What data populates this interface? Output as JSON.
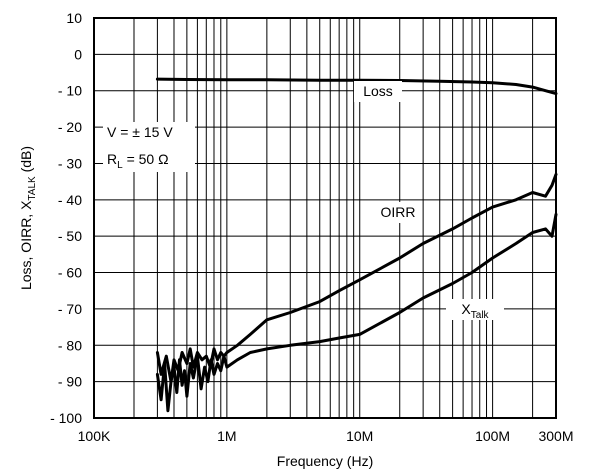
{
  "chart_data": {
    "type": "line",
    "title": "",
    "xlabel": "Frequency (Hz)",
    "ylabel_parts": [
      "Loss, OIRR, X",
      "TALK",
      " (dB)"
    ],
    "x_scale": "log",
    "xlim": [
      100000,
      300000000
    ],
    "ylim": [
      -100,
      10
    ],
    "grid": true,
    "x_ticks": [
      {
        "value": 100000,
        "label": "100K"
      },
      {
        "value": 1000000,
        "label": "1M"
      },
      {
        "value": 10000000,
        "label": "10M"
      },
      {
        "value": 100000000,
        "label": "100M"
      },
      {
        "value": 300000000,
        "label": "300M"
      }
    ],
    "y_ticks": [
      {
        "value": 10,
        "label": "10"
      },
      {
        "value": 0,
        "label": "0"
      },
      {
        "value": -10,
        "label": "- 10"
      },
      {
        "value": -20,
        "label": "- 20"
      },
      {
        "value": -30,
        "label": "- 30"
      },
      {
        "value": -40,
        "label": "- 40"
      },
      {
        "value": -50,
        "label": "- 50"
      },
      {
        "value": -60,
        "label": "- 60"
      },
      {
        "value": -70,
        "label": "- 70"
      },
      {
        "value": -80,
        "label": "- 80"
      },
      {
        "value": -90,
        "label": "- 90"
      },
      {
        "value": -100,
        "label": "- 100"
      }
    ],
    "annotation": {
      "line1": "V = ± 15 V",
      "line2_main": "R",
      "line2_sub": "L",
      "line2_rest": " = 50 Ω"
    },
    "series": [
      {
        "name": "Loss",
        "label_main": "Loss",
        "label_sub": "",
        "x": [
          300000,
          500000,
          1000000,
          2000000,
          5000000,
          10000000,
          20000000,
          40000000,
          70000000,
          100000000,
          150000000,
          200000000,
          250000000,
          300000000
        ],
        "y": [
          -6.8,
          -6.9,
          -7.0,
          -7.0,
          -7.1,
          -7.1,
          -7.2,
          -7.4,
          -7.6,
          -7.8,
          -8.3,
          -9.0,
          -10.0,
          -10.8
        ]
      },
      {
        "name": "OIRR",
        "label_main": "OIRR",
        "label_sub": "",
        "x": [
          300000,
          320000,
          350000,
          380000,
          400000,
          430000,
          460000,
          500000,
          530000,
          560000,
          600000,
          650000,
          700000,
          750000,
          800000,
          850000,
          900000,
          950000,
          1000000,
          1200000,
          1500000,
          2000000,
          3000000,
          5000000,
          7000000,
          10000000,
          20000000,
          30000000,
          50000000,
          70000000,
          100000000,
          150000000,
          200000000,
          250000000,
          280000000,
          300000000
        ],
        "y": [
          -82,
          -88,
          -83,
          -90,
          -84,
          -87,
          -82,
          -85,
          -81,
          -86,
          -82,
          -84,
          -83,
          -86,
          -81,
          -84,
          -82,
          -83,
          -82,
          -80,
          -77,
          -73,
          -71,
          -68,
          -65,
          -62,
          -56,
          -52,
          -48,
          -45,
          -42,
          -40,
          -38,
          -39,
          -36,
          -33
        ]
      },
      {
        "name": "XTalk",
        "label_main": "X",
        "label_sub": "Talk",
        "x": [
          300000,
          320000,
          340000,
          360000,
          380000,
          400000,
          420000,
          440000,
          460000,
          480000,
          500000,
          530000,
          560000,
          600000,
          640000,
          680000,
          720000,
          760000,
          800000,
          850000,
          900000,
          950000,
          1000000,
          1200000,
          1500000,
          2000000,
          3000000,
          5000000,
          7000000,
          10000000,
          20000000,
          30000000,
          50000000,
          70000000,
          100000000,
          150000000,
          200000000,
          250000000,
          280000000,
          300000000
        ],
        "y": [
          -88,
          -95,
          -85,
          -98,
          -90,
          -86,
          -93,
          -84,
          -91,
          -87,
          -94,
          -85,
          -89,
          -83,
          -92,
          -86,
          -90,
          -84,
          -88,
          -85,
          -87,
          -83,
          -86,
          -84,
          -82,
          -81,
          -80,
          -79,
          -78,
          -77,
          -71,
          -67,
          -63,
          -60,
          -56,
          -52,
          -49,
          -48,
          -50,
          -44
        ]
      }
    ]
  }
}
